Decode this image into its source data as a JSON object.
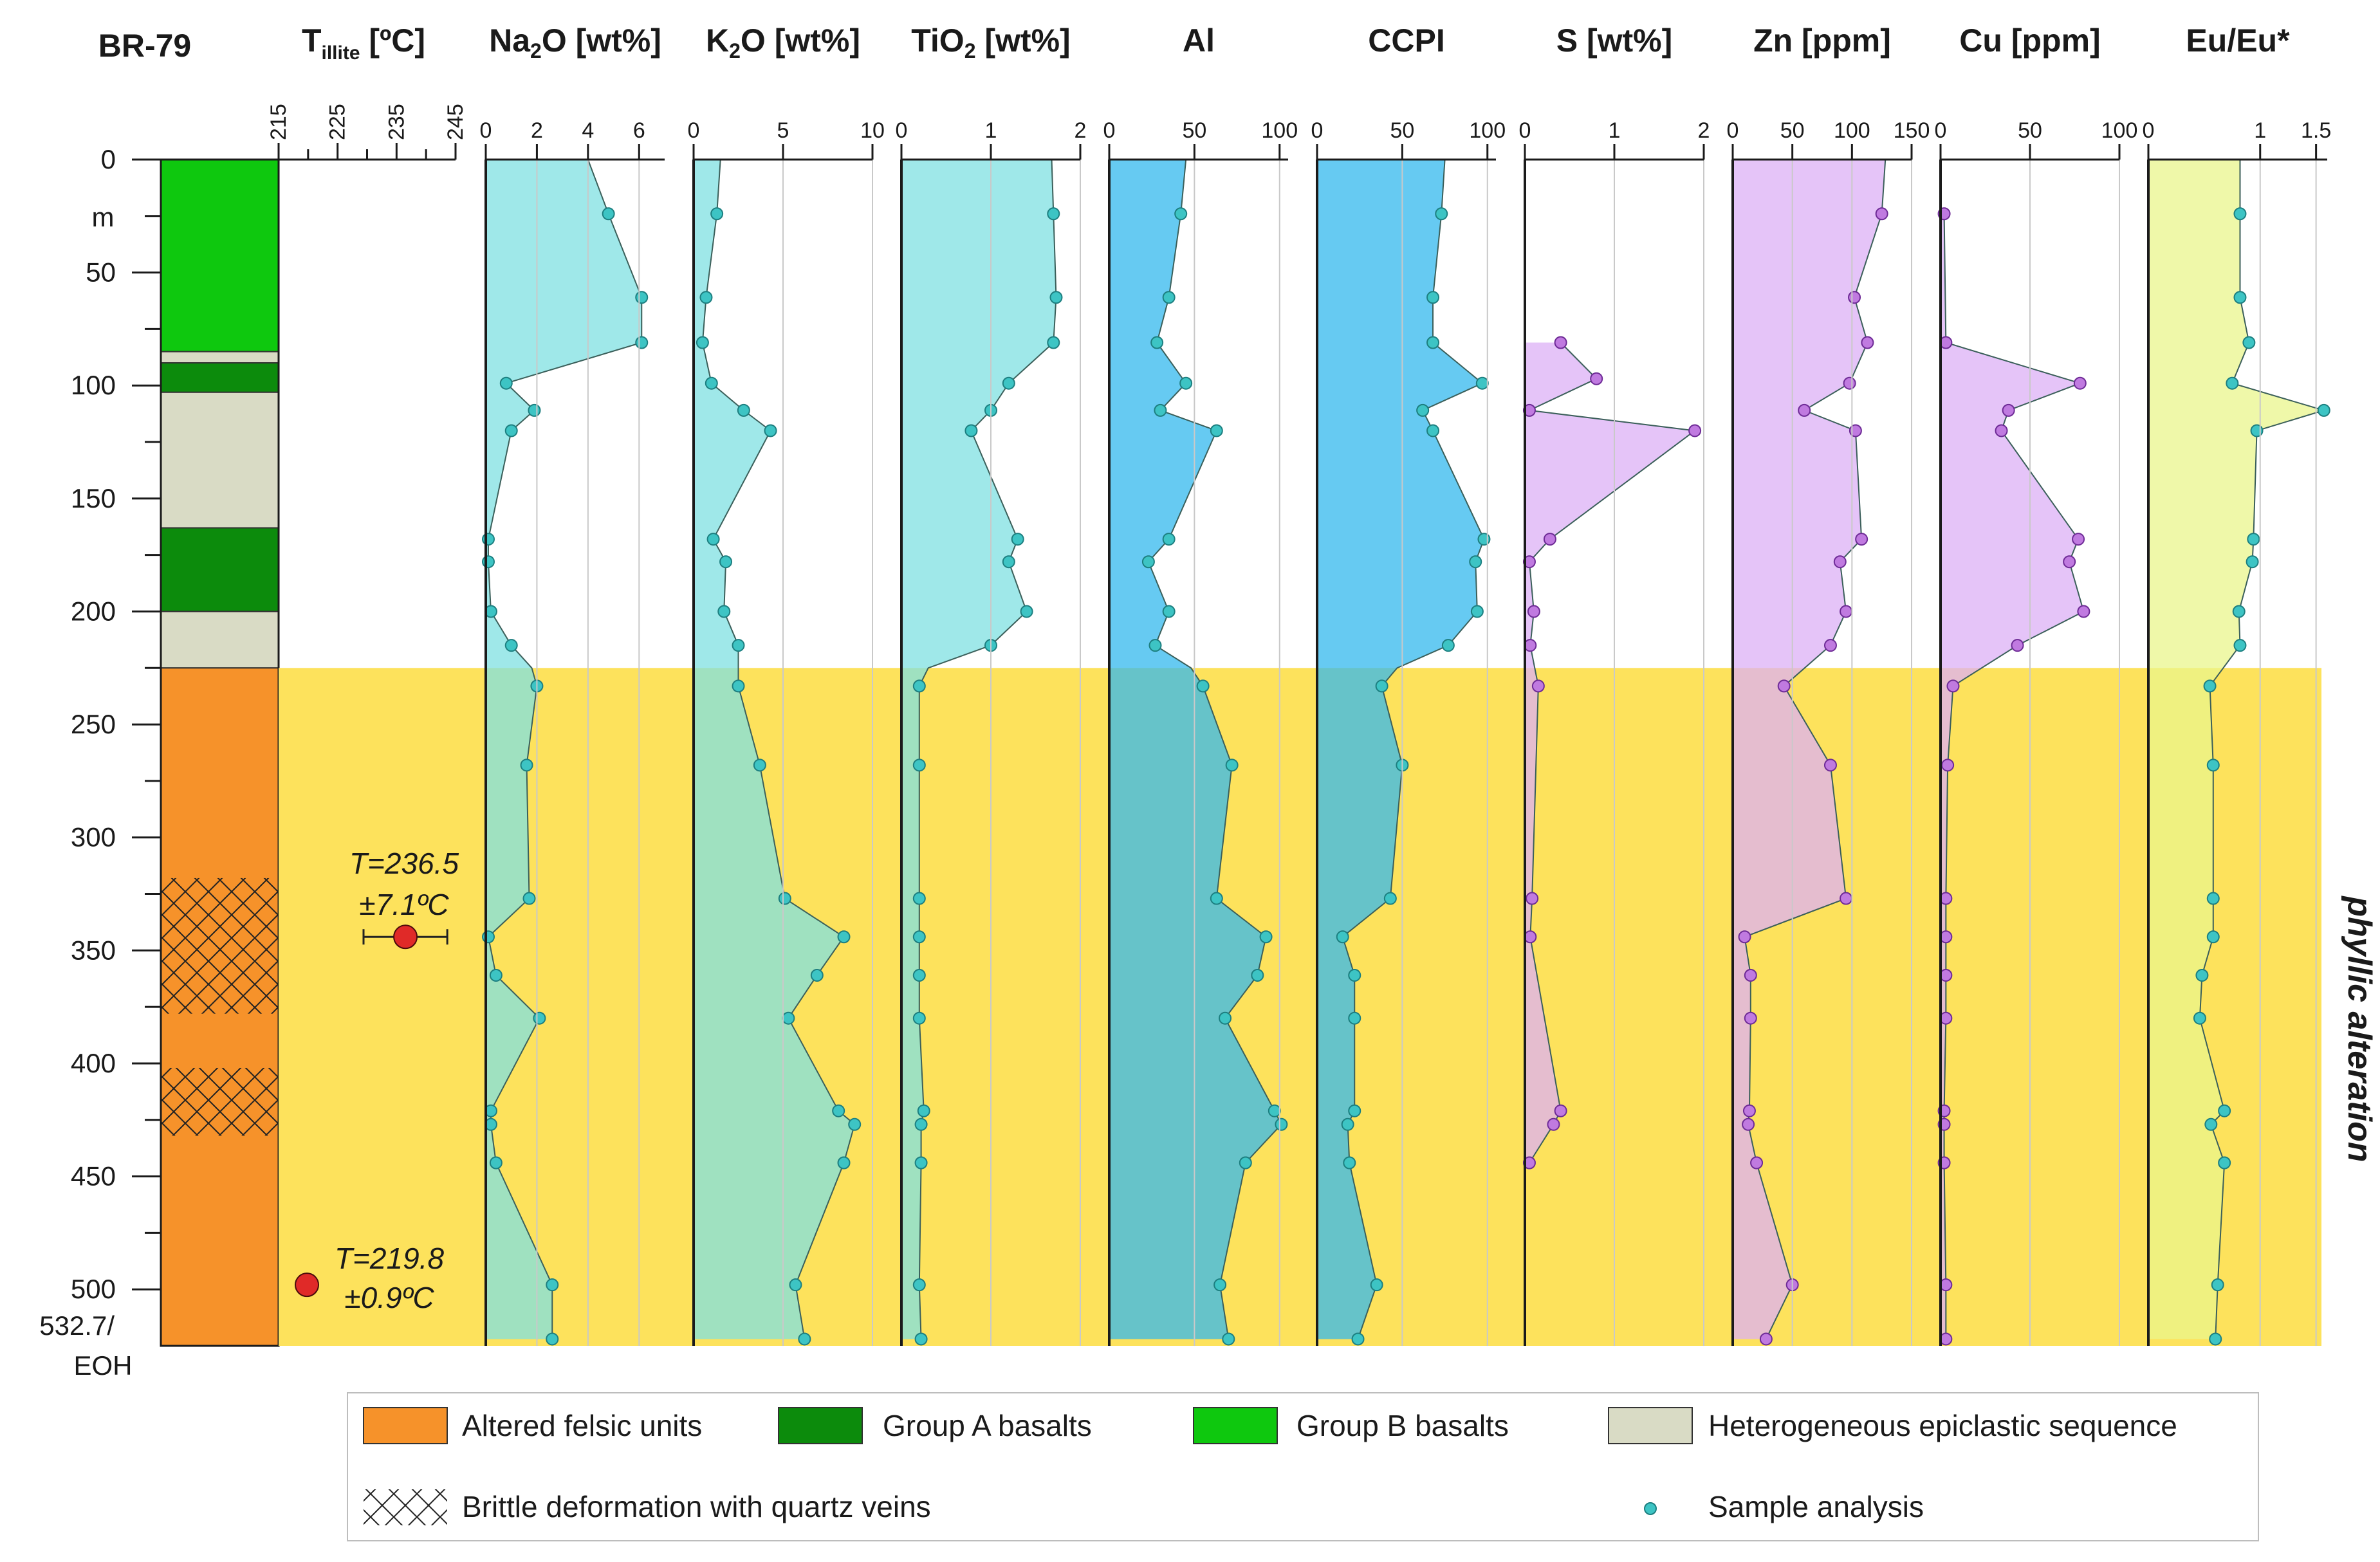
{
  "chart_data": {
    "type": "line",
    "well_id": "BR-79",
    "depth_axis": {
      "ticks": [
        "0",
        "50",
        "100",
        "150",
        "200",
        "250",
        "300",
        "350",
        "400",
        "450",
        "500"
      ],
      "unit": "m",
      "max_depth": 525,
      "eoh_label_1": "532.7/",
      "eoh_label_2": "EOH"
    },
    "lithology": [
      {
        "from": 0,
        "to": 85,
        "unit": "group_b"
      },
      {
        "from": 85,
        "to": 90,
        "unit": "epiclastic"
      },
      {
        "from": 90,
        "to": 103,
        "unit": "group_a"
      },
      {
        "from": 103,
        "to": 163,
        "unit": "epiclastic"
      },
      {
        "from": 163,
        "to": 200,
        "unit": "group_a"
      },
      {
        "from": 200,
        "to": 225,
        "unit": "epiclastic"
      },
      {
        "from": 225,
        "to": 525,
        "unit": "felsic"
      }
    ],
    "brittle_zones": [
      {
        "from": 318,
        "to": 378
      },
      {
        "from": 402,
        "to": 432
      }
    ],
    "alteration_zone": {
      "from": 225,
      "to": 525,
      "label": "phyllic alteration"
    },
    "illite_temperature": {
      "title_main": "T",
      "title_sub": "illite",
      "title_unit": " [ºC]",
      "xlim": [
        215,
        245
      ],
      "ticks": [
        "215",
        "225",
        "235",
        "245"
      ],
      "points": [
        {
          "depth": 344,
          "value": 236.5,
          "error": 7.1,
          "label_1": "T=236.5",
          "label_2": "±7.1ºC"
        },
        {
          "depth": 498,
          "value": 219.8,
          "error": 0.9,
          "label_1": "T=219.8",
          "label_2": "±0.9ºC"
        }
      ]
    },
    "panels": [
      {
        "key": "na2o",
        "t1": "Na",
        "t2": "2",
        "t3": "O [wt%]",
        "xlim": [
          0,
          7
        ],
        "ticks": [
          "0",
          "2",
          "4",
          "6"
        ],
        "tick_values": [
          0,
          2,
          4,
          6
        ],
        "fill": "#7fe0e2",
        "marker": "#2aa8a8",
        "depths": [
          0,
          24,
          61,
          81,
          99,
          111,
          120,
          168,
          178,
          200,
          215,
          225,
          233,
          268,
          327,
          344,
          361,
          380,
          421,
          427,
          444,
          498,
          522
        ],
        "values": [
          4,
          4.8,
          6.1,
          6.1,
          0.8,
          1.9,
          1.0,
          0.1,
          0.1,
          0.2,
          1.0,
          1.8,
          2.0,
          1.6,
          1.7,
          0.1,
          0.4,
          2.1,
          0.2,
          0.2,
          0.4,
          2.6,
          2.6
        ],
        "marker_idx": [
          1,
          2,
          3,
          4,
          5,
          6,
          7,
          8,
          9,
          10,
          12,
          13,
          14,
          15,
          16,
          17,
          18,
          19,
          20,
          21,
          22
        ]
      },
      {
        "key": "k2o",
        "t1": "K",
        "t2": "2",
        "t3": "O [wt%]",
        "xlim": [
          0,
          10
        ],
        "ticks": [
          "0",
          "5",
          "10"
        ],
        "tick_values": [
          0,
          5,
          10
        ],
        "fill": "#7fe0e2",
        "marker": "#2aa8a8",
        "depths": [
          0,
          24,
          61,
          81,
          99,
          111,
          120,
          168,
          178,
          200,
          215,
          225,
          233,
          268,
          327,
          344,
          361,
          380,
          421,
          427,
          444,
          498,
          522
        ],
        "values": [
          1.5,
          1.3,
          0.7,
          0.5,
          1.0,
          2.8,
          4.3,
          1.1,
          1.8,
          1.7,
          2.5,
          2.5,
          2.5,
          3.7,
          5.1,
          8.4,
          6.9,
          5.3,
          8.1,
          9.0,
          8.4,
          5.7,
          6.2
        ],
        "marker_idx": [
          1,
          2,
          3,
          4,
          5,
          6,
          7,
          8,
          9,
          10,
          12,
          13,
          14,
          15,
          16,
          17,
          18,
          19,
          20,
          21,
          22
        ]
      },
      {
        "key": "tio2",
        "t1": "TiO",
        "t2": "2",
        "t3": " [wt%]",
        "xlim": [
          0,
          2
        ],
        "ticks": [
          "0",
          "1",
          "2"
        ],
        "tick_values": [
          0,
          1,
          2
        ],
        "fill": "#7fe0e2",
        "marker": "#2aa8a8",
        "depths": [
          0,
          24,
          61,
          81,
          99,
          111,
          120,
          168,
          178,
          200,
          215,
          225,
          233,
          268,
          327,
          344,
          361,
          380,
          421,
          427,
          444,
          498,
          522
        ],
        "values": [
          1.68,
          1.7,
          1.73,
          1.7,
          1.2,
          1.0,
          0.78,
          1.3,
          1.2,
          1.4,
          1.0,
          0.3,
          0.2,
          0.2,
          0.2,
          0.2,
          0.2,
          0.2,
          0.25,
          0.22,
          0.22,
          0.2,
          0.22
        ],
        "marker_idx": [
          1,
          2,
          3,
          4,
          5,
          6,
          7,
          8,
          9,
          10,
          12,
          13,
          14,
          15,
          16,
          17,
          18,
          19,
          20,
          21,
          22
        ]
      },
      {
        "key": "al",
        "t1": "Al",
        "t2": "",
        "t3": "",
        "xlim": [
          0,
          105
        ],
        "ticks": [
          "0",
          "50",
          "100"
        ],
        "tick_values": [
          0,
          50,
          100
        ],
        "fill": "#33b8ee",
        "marker": "#2aa8a8",
        "depths": [
          0,
          24,
          61,
          81,
          99,
          111,
          120,
          168,
          178,
          200,
          215,
          225,
          233,
          268,
          327,
          344,
          361,
          380,
          421,
          427,
          444,
          498,
          522
        ],
        "values": [
          45,
          42,
          35,
          28,
          45,
          30,
          63,
          35,
          23,
          35,
          27,
          48,
          55,
          72,
          63,
          92,
          87,
          68,
          97,
          101,
          80,
          65,
          70
        ],
        "marker_idx": [
          1,
          2,
          3,
          4,
          5,
          6,
          7,
          8,
          9,
          10,
          12,
          13,
          14,
          15,
          16,
          17,
          18,
          19,
          20,
          21,
          22
        ]
      },
      {
        "key": "ccpi",
        "t1": "CCPI",
        "t2": "",
        "t3": "",
        "xlim": [
          0,
          105
        ],
        "ticks": [
          "0",
          "50",
          "100"
        ],
        "tick_values": [
          0,
          50,
          100
        ],
        "fill": "#33b8ee",
        "marker": "#2aa8a8",
        "depths": [
          0,
          24,
          61,
          81,
          99,
          111,
          120,
          168,
          178,
          200,
          215,
          225,
          233,
          268,
          327,
          344,
          361,
          380,
          421,
          427,
          444,
          498,
          522
        ],
        "values": [
          75,
          73,
          68,
          68,
          97,
          62,
          68,
          98,
          93,
          94,
          77,
          47,
          38,
          50,
          43,
          15,
          22,
          22,
          22,
          18,
          19,
          35,
          24
        ],
        "marker_idx": [
          1,
          2,
          3,
          4,
          5,
          6,
          7,
          8,
          9,
          10,
          12,
          13,
          14,
          15,
          16,
          17,
          18,
          19,
          20,
          21,
          22
        ]
      },
      {
        "key": "s",
        "t1": "S [wt%]",
        "t2": "",
        "t3": "",
        "xlim": [
          0,
          2
        ],
        "ticks": [
          "0",
          "1",
          "2"
        ],
        "tick_values": [
          0,
          1,
          2
        ],
        "fill": "#dcb0f5",
        "marker": "#a35bc8",
        "from_depth": 81,
        "depths": [
          81,
          97,
          111,
          120,
          168,
          178,
          200,
          215,
          233,
          327,
          344,
          421,
          427,
          444
        ],
        "values": [
          0.4,
          0.8,
          0.05,
          1.9,
          0.28,
          0.05,
          0.1,
          0.06,
          0.15,
          0.08,
          0.06,
          0.4,
          0.32,
          0.05
        ],
        "marker_idx": [
          0,
          1,
          2,
          3,
          4,
          5,
          6,
          7,
          8,
          9,
          10,
          11,
          12,
          13
        ]
      },
      {
        "key": "zn",
        "t1": "Zn [ppm]",
        "t2": "",
        "t3": "",
        "xlim": [
          0,
          150
        ],
        "ticks": [
          "0",
          "50",
          "100",
          "150"
        ],
        "tick_values": [
          0,
          50,
          100,
          150
        ],
        "fill": "#dcb0f5",
        "marker": "#a35bc8",
        "depths": [
          0,
          24,
          61,
          81,
          99,
          111,
          120,
          168,
          178,
          200,
          215,
          233,
          268,
          327,
          344,
          361,
          380,
          421,
          427,
          444,
          498,
          522
        ],
        "values": [
          128,
          125,
          102,
          113,
          98,
          60,
          103,
          108,
          90,
          95,
          82,
          43,
          82,
          95,
          10,
          15,
          15,
          14,
          13,
          20,
          50,
          28
        ],
        "marker_idx": [
          1,
          2,
          3,
          4,
          5,
          6,
          7,
          8,
          9,
          10,
          11,
          12,
          13,
          14,
          15,
          16,
          17,
          18,
          19,
          20,
          21
        ]
      },
      {
        "key": "cu",
        "t1": "Cu [ppm]",
        "t2": "",
        "t3": "",
        "xlim": [
          0,
          100
        ],
        "ticks": [
          "0",
          "50",
          "100"
        ],
        "tick_values": [
          0,
          50,
          100
        ],
        "fill": "#dcb0f5",
        "marker": "#a35bc8",
        "depths": [
          24,
          81,
          99,
          111,
          120,
          168,
          178,
          200,
          215,
          233,
          268,
          327,
          344,
          361,
          380,
          421,
          427,
          444,
          498,
          522
        ],
        "values": [
          2,
          3,
          78,
          38,
          34,
          77,
          72,
          80,
          43,
          7,
          4,
          3,
          3,
          3,
          3,
          2,
          2,
          2,
          3,
          3
        ],
        "marker_idx": [
          0,
          1,
          2,
          3,
          4,
          5,
          6,
          7,
          8,
          9,
          10,
          11,
          12,
          13,
          14,
          15,
          16,
          17,
          18,
          19
        ]
      },
      {
        "key": "eu",
        "t1": "Eu/Eu*",
        "t2": "",
        "t3": "",
        "xlim": [
          0,
          1.6
        ],
        "ticks": [
          "0",
          "1",
          "1.5"
        ],
        "tick_values": [
          0,
          1,
          1.5
        ],
        "fill": "#eaf58c",
        "marker": "#2aa8a8",
        "depths": [
          0,
          24,
          61,
          81,
          99,
          111,
          120,
          168,
          178,
          200,
          215,
          233,
          268,
          327,
          344,
          361,
          380,
          421,
          427,
          444,
          498,
          522
        ],
        "values": [
          0.82,
          0.82,
          0.82,
          0.9,
          0.75,
          1.57,
          0.97,
          0.94,
          0.93,
          0.81,
          0.82,
          0.55,
          0.58,
          0.58,
          0.58,
          0.48,
          0.46,
          0.68,
          0.56,
          0.68,
          0.62,
          0.6
        ],
        "marker_idx": [
          1,
          2,
          3,
          4,
          5,
          6,
          7,
          8,
          9,
          10,
          11,
          12,
          13,
          14,
          15,
          16,
          17,
          18,
          19,
          20,
          21
        ]
      }
    ],
    "legend": {
      "felsic": "Altered felsic units",
      "group_a": "Group A basalts",
      "group_b": "Group B basalts",
      "epiclastic": "Heterogeneous epiclastic sequence",
      "brittle": "Brittle deformation with quartz veins",
      "sample": "Sample analysis"
    },
    "colors": {
      "felsic": "#f6922a",
      "group_a": "#0c8b0c",
      "group_b": "#0ec80e",
      "epiclastic": "#d9dbc5",
      "alteration": "#fde25c",
      "temp_point": "#e02a28",
      "axis": "#1a1a1a",
      "grid": "#c9c9c9"
    }
  }
}
